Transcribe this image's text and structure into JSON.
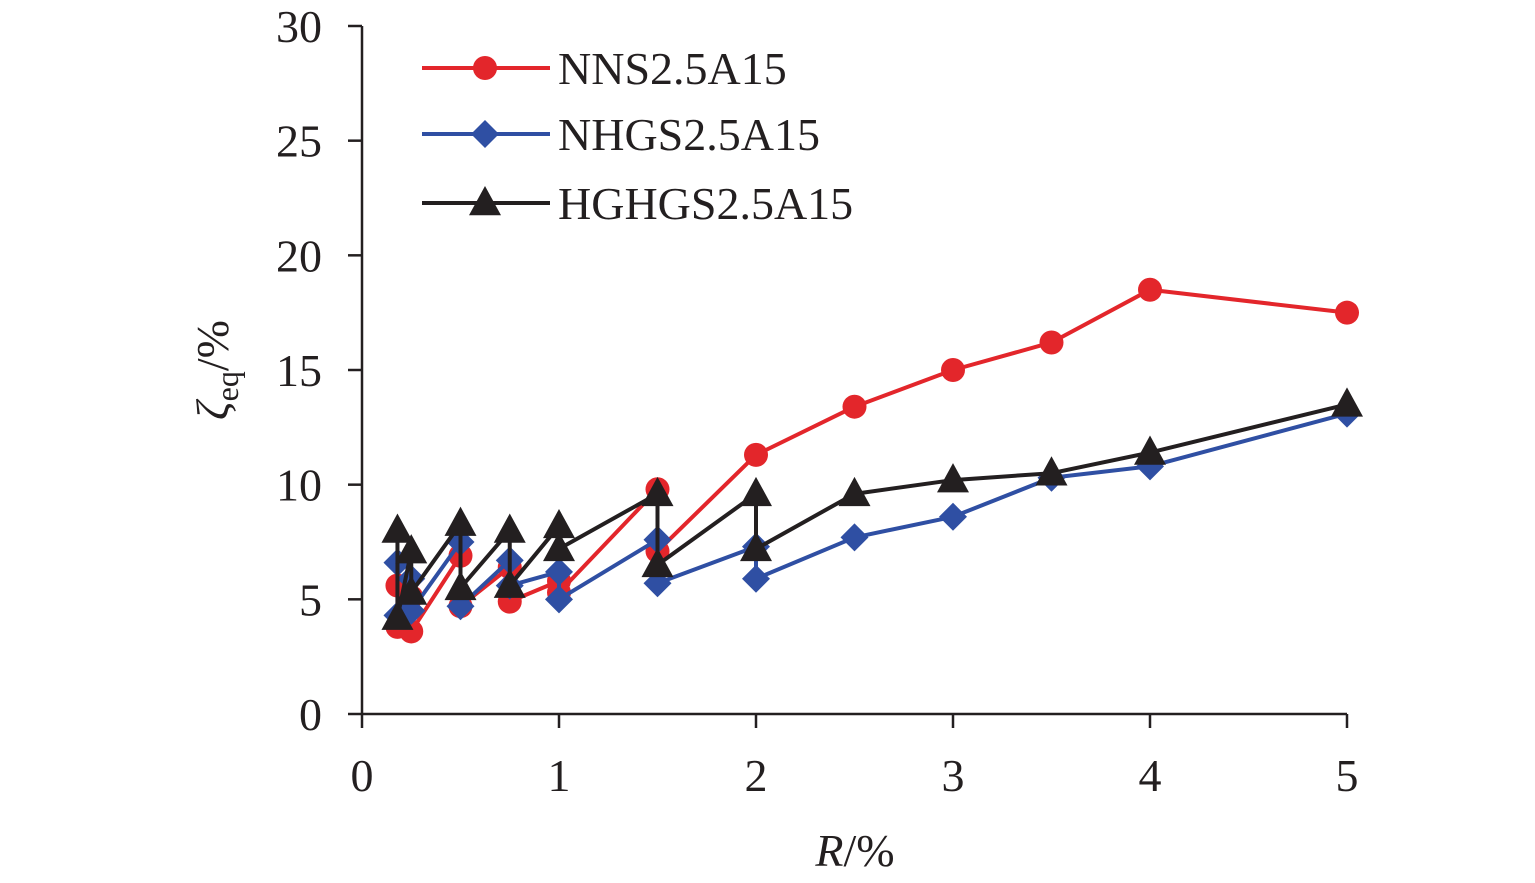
{
  "chart_data": {
    "type": "line",
    "title": "",
    "xlabel": "R/%",
    "xlabel_italic": "R",
    "xlabel_unit": "/%",
    "ylabel": "ζeq/%",
    "ylabel_symbol": "ζ",
    "ylabel_subscript": "eq",
    "ylabel_unit": "/%",
    "xlim": [
      0,
      5
    ],
    "ylim": [
      0,
      30
    ],
    "xticks": [
      0,
      1,
      2,
      3,
      4,
      5
    ],
    "yticks": [
      0,
      5,
      10,
      15,
      20,
      25,
      30
    ],
    "grid": false,
    "legend_position": "top-left",
    "series": [
      {
        "name": "NNS2.5A15",
        "color": "#e3262b",
        "marker": "circle",
        "points": [
          [
            0.18,
            5.6
          ],
          [
            0.18,
            3.8
          ],
          [
            0.25,
            5.1
          ],
          [
            0.25,
            3.6
          ],
          [
            0.5,
            6.9
          ],
          [
            0.5,
            4.7
          ],
          [
            0.75,
            6.4
          ],
          [
            0.75,
            4.9
          ],
          [
            1,
            5.8
          ],
          [
            1,
            5.3
          ],
          [
            1.5,
            9.8
          ],
          [
            1.5,
            7.1
          ],
          [
            2,
            11.3
          ],
          [
            2.5,
            13.4
          ],
          [
            3,
            15.0
          ],
          [
            3.5,
            16.2
          ],
          [
            4,
            18.5
          ],
          [
            5,
            17.5
          ]
        ]
      },
      {
        "name": "NHGS2.5A15",
        "color": "#2f4fa3",
        "marker": "diamond",
        "points": [
          [
            0.18,
            6.6
          ],
          [
            0.18,
            4.3
          ],
          [
            0.25,
            5.9
          ],
          [
            0.25,
            4.5
          ],
          [
            0.5,
            7.5
          ],
          [
            0.5,
            4.7
          ],
          [
            0.75,
            6.7
          ],
          [
            0.75,
            5.6
          ],
          [
            1,
            6.2
          ],
          [
            1,
            5.0
          ],
          [
            1.5,
            7.6
          ],
          [
            1.5,
            5.7
          ],
          [
            2,
            7.3
          ],
          [
            2,
            5.9
          ],
          [
            2.5,
            7.7
          ],
          [
            3,
            8.6
          ],
          [
            3.5,
            10.3
          ],
          [
            4,
            10.8
          ],
          [
            5,
            13.1
          ]
        ]
      },
      {
        "name": "HGHGS2.5A15",
        "color": "#231f20",
        "marker": "triangle",
        "points": [
          [
            0.18,
            8.0
          ],
          [
            0.18,
            4.2
          ],
          [
            0.25,
            7.1
          ],
          [
            0.25,
            5.3
          ],
          [
            0.5,
            8.3
          ],
          [
            0.5,
            5.5
          ],
          [
            0.75,
            8.0
          ],
          [
            0.75,
            5.6
          ],
          [
            1,
            8.2
          ],
          [
            1,
            7.2
          ],
          [
            1.5,
            9.6
          ],
          [
            1.5,
            6.5
          ],
          [
            2,
            9.6
          ],
          [
            2,
            7.2
          ],
          [
            2.5,
            9.6
          ],
          [
            3,
            10.2
          ],
          [
            3.5,
            10.5
          ],
          [
            4,
            11.4
          ],
          [
            5,
            13.5
          ]
        ]
      }
    ]
  }
}
